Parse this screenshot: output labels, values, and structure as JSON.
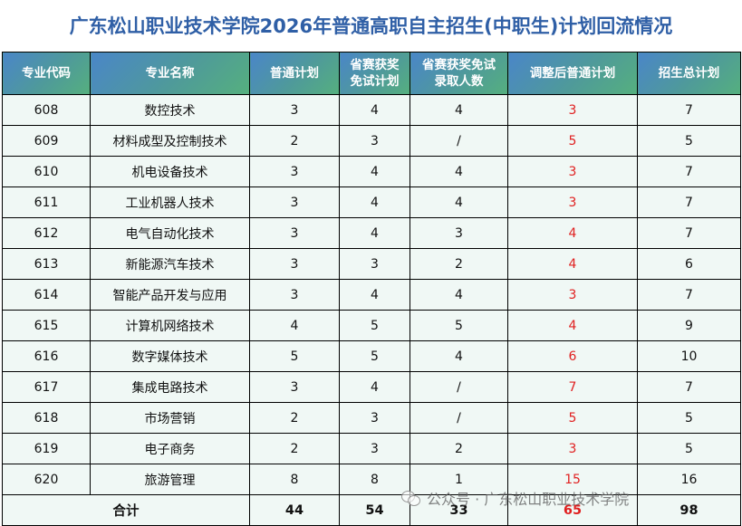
{
  "title": "广东松山职业技术学院2026年普通高职自主招生(中职生)计划回流情况",
  "columns": [
    {
      "l1": "专业代码",
      "l2": ""
    },
    {
      "l1": "专业名称",
      "l2": ""
    },
    {
      "l1": "普通计划",
      "l2": ""
    },
    {
      "l1": "省赛获奖",
      "l2": "免试计划"
    },
    {
      "l1": "省赛获奖免试",
      "l2": "录取人数"
    },
    {
      "l1": "调整后普通计划",
      "l2": ""
    },
    {
      "l1": "招生总计划",
      "l2": ""
    }
  ],
  "rows": [
    {
      "code": "608",
      "name": "数控技术",
      "plan": "3",
      "exempt_plan": "4",
      "exempt_admitted": "4",
      "adjusted": "3",
      "total": "7"
    },
    {
      "code": "609",
      "name": "材料成型及控制技术",
      "plan": "2",
      "exempt_plan": "3",
      "exempt_admitted": "/",
      "adjusted": "5",
      "total": "5"
    },
    {
      "code": "610",
      "name": "机电设备技术",
      "plan": "3",
      "exempt_plan": "4",
      "exempt_admitted": "4",
      "adjusted": "3",
      "total": "7"
    },
    {
      "code": "611",
      "name": "工业机器人技术",
      "plan": "3",
      "exempt_plan": "4",
      "exempt_admitted": "4",
      "adjusted": "3",
      "total": "7"
    },
    {
      "code": "612",
      "name": "电气自动化技术",
      "plan": "3",
      "exempt_plan": "4",
      "exempt_admitted": "3",
      "adjusted": "4",
      "total": "7"
    },
    {
      "code": "613",
      "name": "新能源汽车技术",
      "plan": "3",
      "exempt_plan": "3",
      "exempt_admitted": "2",
      "adjusted": "4",
      "total": "6"
    },
    {
      "code": "614",
      "name": "智能产品开发与应用",
      "plan": "3",
      "exempt_plan": "4",
      "exempt_admitted": "4",
      "adjusted": "3",
      "total": "7"
    },
    {
      "code": "615",
      "name": "计算机网络技术",
      "plan": "4",
      "exempt_plan": "5",
      "exempt_admitted": "5",
      "adjusted": "4",
      "total": "9"
    },
    {
      "code": "616",
      "name": "数字媒体技术",
      "plan": "5",
      "exempt_plan": "5",
      "exempt_admitted": "4",
      "adjusted": "6",
      "total": "10"
    },
    {
      "code": "617",
      "name": "集成电路技术",
      "plan": "3",
      "exempt_plan": "4",
      "exempt_admitted": "/",
      "adjusted": "7",
      "total": "7"
    },
    {
      "code": "618",
      "name": "市场营销",
      "plan": "2",
      "exempt_plan": "3",
      "exempt_admitted": "/",
      "adjusted": "5",
      "total": "5"
    },
    {
      "code": "619",
      "name": "电子商务",
      "plan": "2",
      "exempt_plan": "3",
      "exempt_admitted": "2",
      "adjusted": "3",
      "total": "5"
    },
    {
      "code": "620",
      "name": "旅游管理",
      "plan": "8",
      "exempt_plan": "8",
      "exempt_admitted": "1",
      "adjusted": "15",
      "total": "16"
    }
  ],
  "footer": {
    "label": "合计",
    "plan": "44",
    "exempt_plan": "54",
    "exempt_admitted": "33",
    "adjusted": "65",
    "total": "98"
  },
  "watermark": "公众号 · 广东松山职业技术学院",
  "colors": {
    "title": "#2f5fa6",
    "header_start": "#4a86c8",
    "header_end": "#55b07e",
    "row_bg": "#f0f8f5",
    "highlight": "#e02020"
  }
}
